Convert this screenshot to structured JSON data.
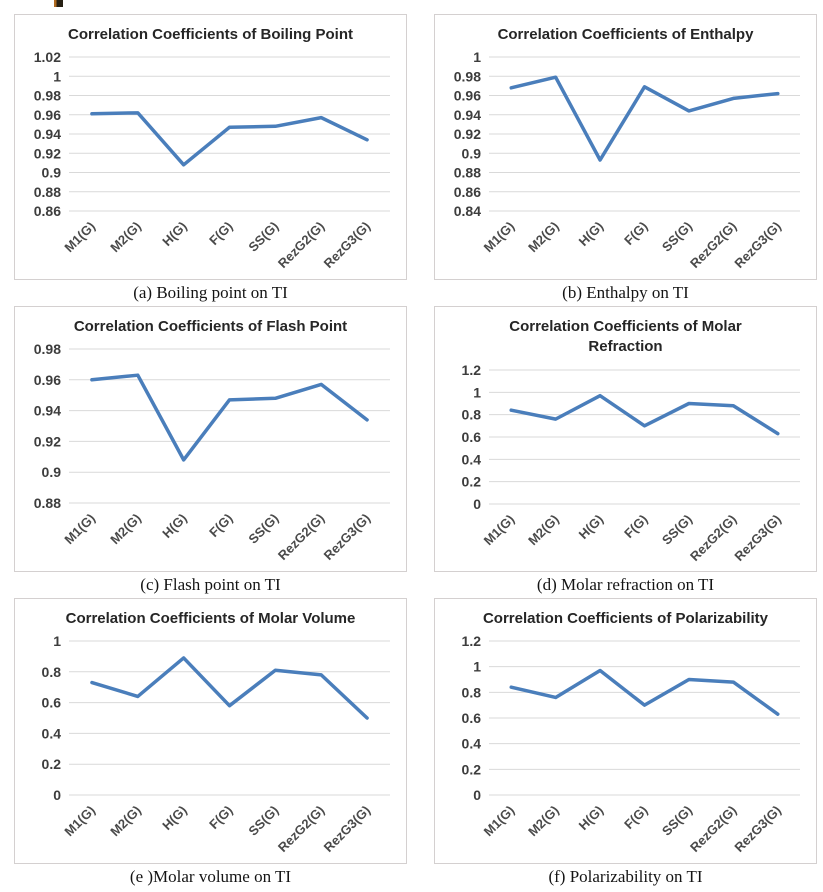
{
  "colors": {
    "line": "#4a7ebb",
    "grid": "#d9d9d9",
    "panel_border": "#d4d0d0",
    "title_text": "#262626",
    "tick_text": "#3d3d3d",
    "caption_text": "#141414"
  },
  "chart_data": [
    {
      "type": "line",
      "title": "Correlation Coefficients of Boiling Point",
      "caption": "(a) Boiling point on TI",
      "categories": [
        "M1(G)",
        "M2(G)",
        "H(G)",
        "F(G)",
        "SS(G)",
        "RezG2(G)",
        "RezG3(G)"
      ],
      "y_ticks": [
        1.02,
        1,
        0.98,
        0.96,
        0.94,
        0.92,
        0.9,
        0.88,
        0.86
      ],
      "ylim": [
        0.86,
        1.02
      ],
      "values": [
        0.961,
        0.962,
        0.908,
        0.947,
        0.948,
        0.957,
        0.934
      ],
      "grid": true,
      "legend": "none"
    },
    {
      "type": "line",
      "title": "Correlation Coefficients of Enthalpy",
      "caption": "(b) Enthalpy on TI",
      "categories": [
        "M1(G)",
        "M2(G)",
        "H(G)",
        "F(G)",
        "SS(G)",
        "RezG2(G)",
        "RezG3(G)"
      ],
      "y_ticks": [
        1,
        0.98,
        0.96,
        0.94,
        0.92,
        0.9,
        0.88,
        0.86,
        0.84
      ],
      "ylim": [
        0.84,
        1
      ],
      "values": [
        0.968,
        0.979,
        0.893,
        0.969,
        0.944,
        0.957,
        0.962
      ],
      "grid": true,
      "legend": "none"
    },
    {
      "type": "line",
      "title": "Correlation Coefficients of Flash Point",
      "caption": "(c) Flash point on TI",
      "categories": [
        "M1(G)",
        "M2(G)",
        "H(G)",
        "F(G)",
        "SS(G)",
        "RezG2(G)",
        "RezG3(G)"
      ],
      "y_ticks": [
        0.98,
        0.96,
        0.94,
        0.92,
        0.9,
        0.88
      ],
      "ylim": [
        0.88,
        0.98
      ],
      "values": [
        0.96,
        0.963,
        0.908,
        0.947,
        0.948,
        0.957,
        0.934
      ],
      "grid": true,
      "legend": "none"
    },
    {
      "type": "line",
      "title": "Correlation Coefficients of Molar\nRefraction",
      "caption": "(d) Molar refraction on TI",
      "categories": [
        "M1(G)",
        "M2(G)",
        "H(G)",
        "F(G)",
        "SS(G)",
        "RezG2(G)",
        "RezG3(G)"
      ],
      "y_ticks": [
        1.2,
        1,
        0.8,
        0.6,
        0.4,
        0.2,
        0
      ],
      "ylim": [
        0,
        1.2
      ],
      "values": [
        0.84,
        0.76,
        0.97,
        0.7,
        0.9,
        0.88,
        0.63
      ],
      "grid": true,
      "legend": "none"
    },
    {
      "type": "line",
      "title": "Correlation Coefficients of Molar Volume",
      "caption": "(e )Molar volume on TI",
      "categories": [
        "M1(G)",
        "M2(G)",
        "H(G)",
        "F(G)",
        "SS(G)",
        "RezG2(G)",
        "RezG3(G)"
      ],
      "y_ticks": [
        1,
        0.8,
        0.6,
        0.4,
        0.2,
        0
      ],
      "ylim": [
        0,
        1
      ],
      "values": [
        0.73,
        0.64,
        0.89,
        0.58,
        0.81,
        0.78,
        0.5
      ],
      "grid": true,
      "legend": "none"
    },
    {
      "type": "line",
      "title": "Correlation Coefficients of Polarizability",
      "caption": "(f) Polarizability on TI",
      "categories": [
        "M1(G)",
        "M2(G)",
        "H(G)",
        "F(G)",
        "SS(G)",
        "RezG2(G)",
        "RezG3(G)"
      ],
      "y_ticks": [
        1.2,
        1,
        0.8,
        0.6,
        0.4,
        0.2,
        0
      ],
      "ylim": [
        0,
        1.2
      ],
      "values": [
        0.84,
        0.76,
        0.97,
        0.7,
        0.9,
        0.88,
        0.63
      ],
      "grid": true,
      "legend": "none"
    }
  ]
}
